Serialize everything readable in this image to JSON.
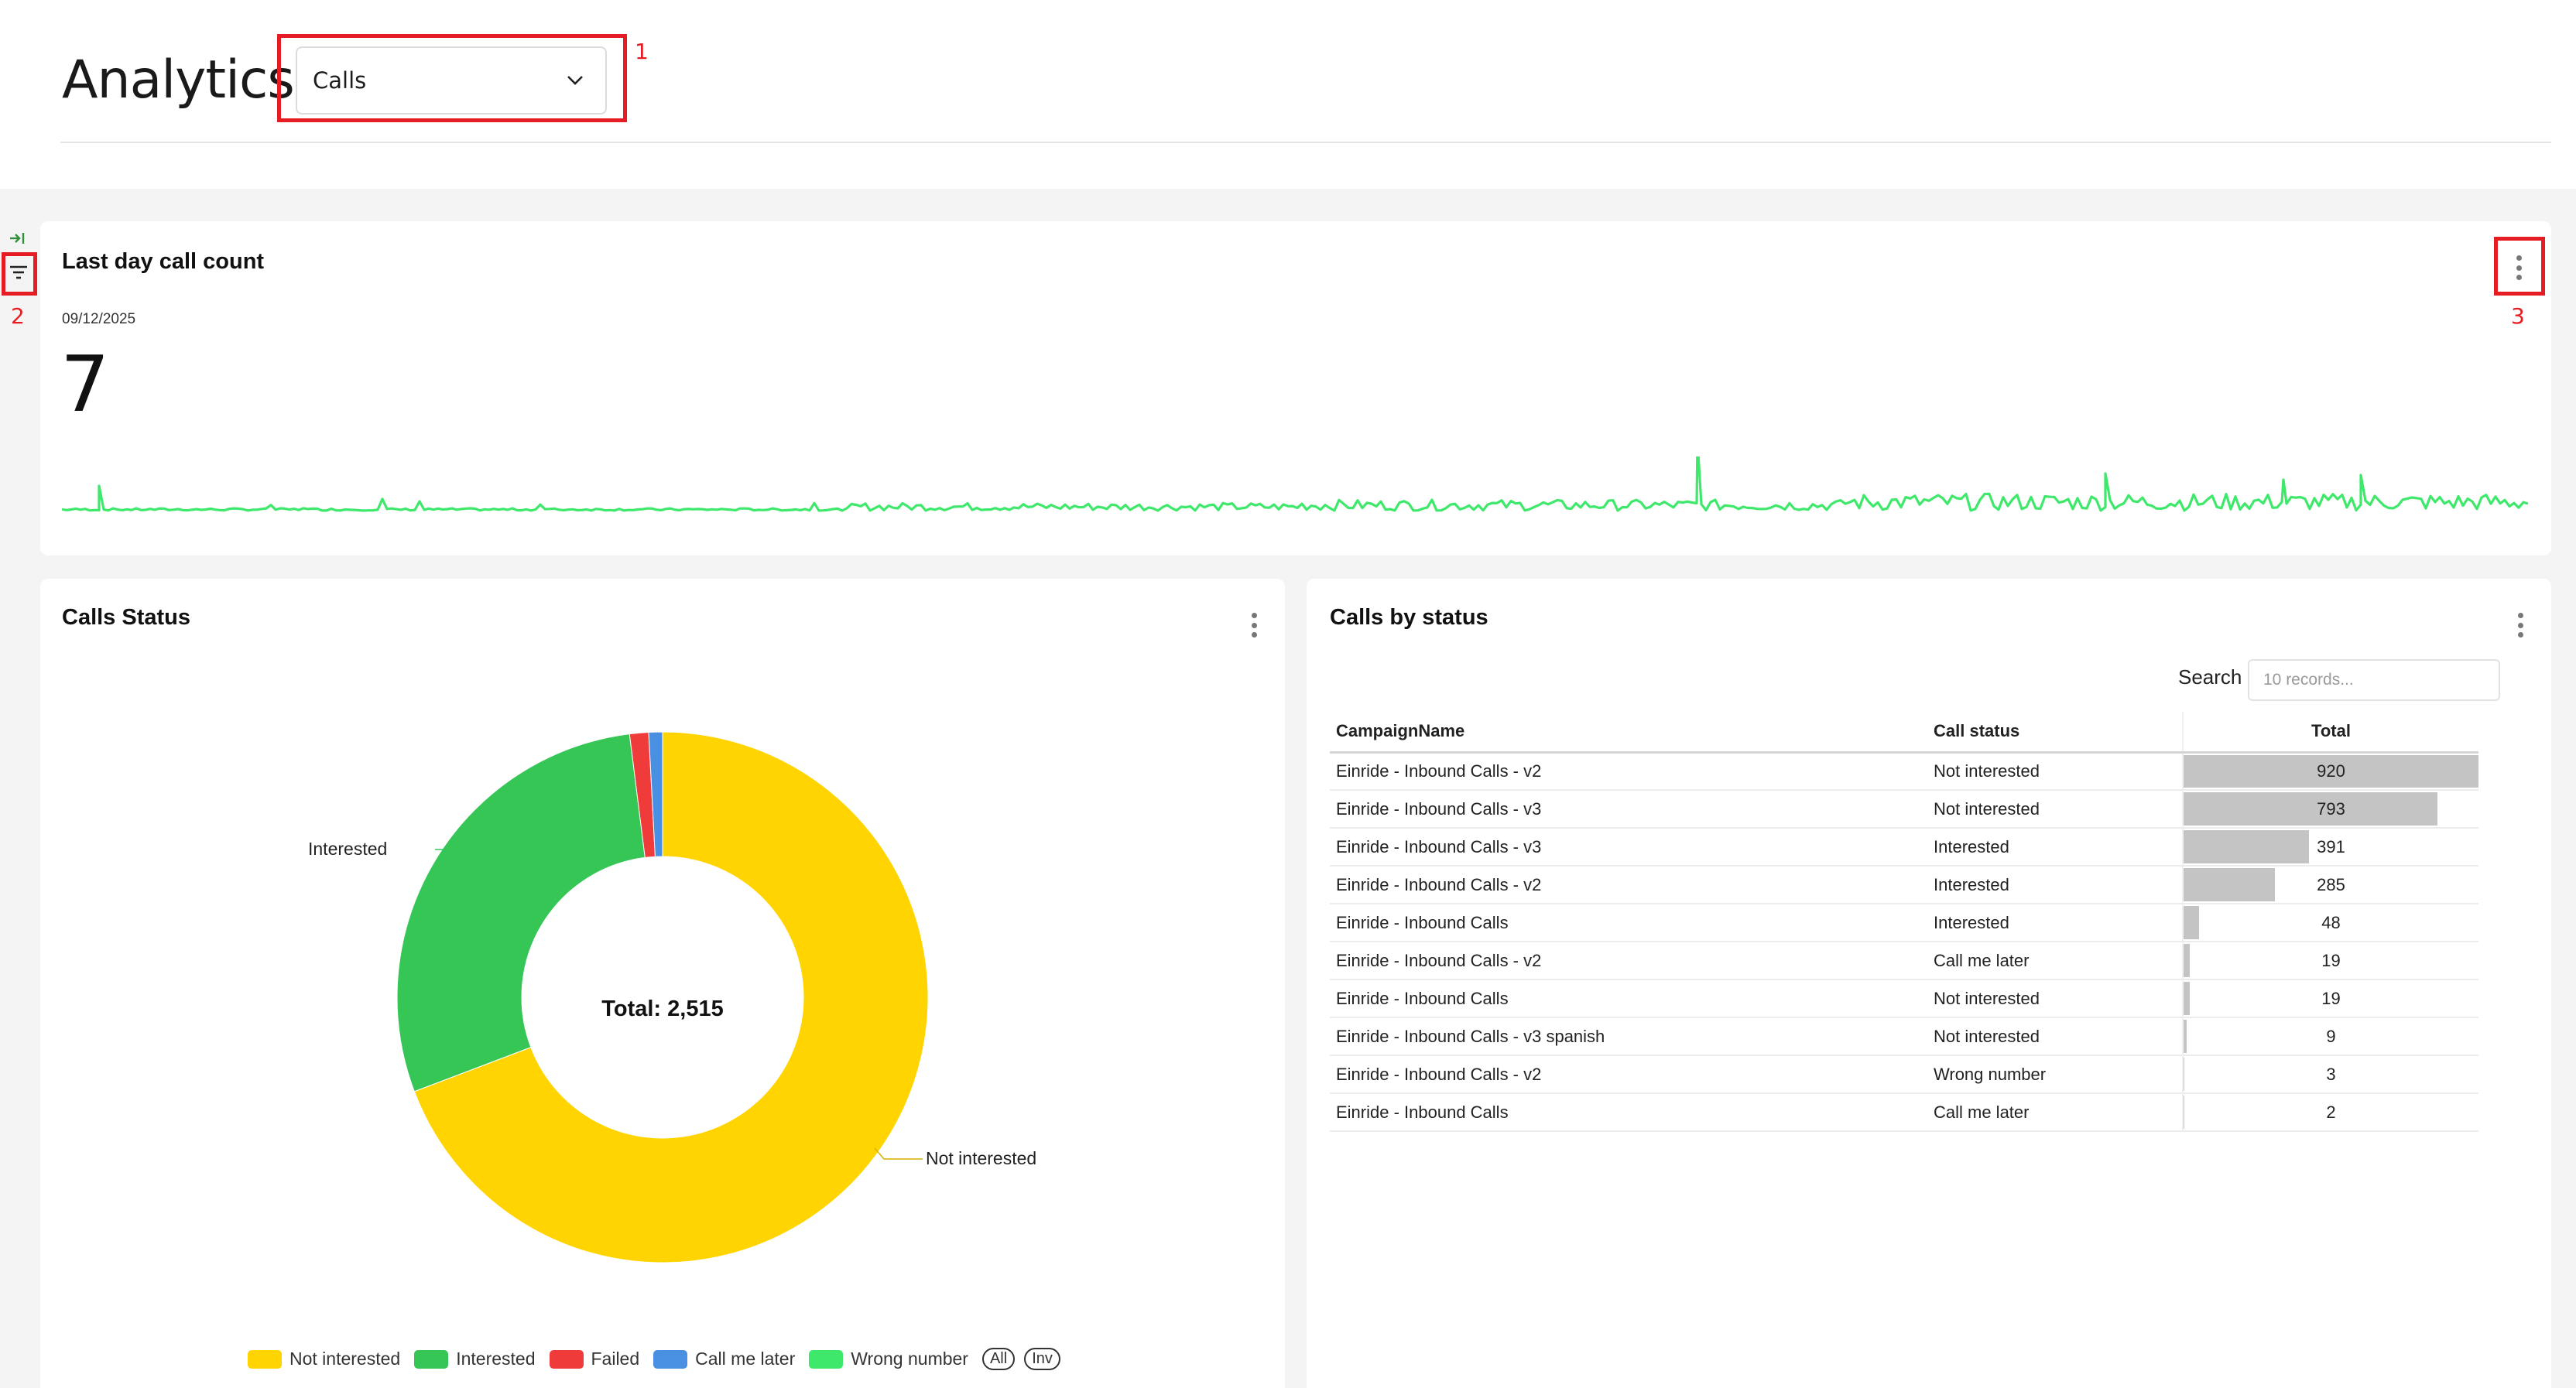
{
  "header": {
    "title": "Analytics",
    "dashboard_select": {
      "value": "Calls"
    }
  },
  "annotations": [
    "1",
    "2",
    "3"
  ],
  "last_day_card": {
    "title": "Last day call count",
    "date": "09/12/2025",
    "value": "7",
    "sparkline_color": "#3ee86a"
  },
  "calls_status_card": {
    "title": "Calls Status",
    "center_label": "Total: 2,515",
    "slice_labels": {
      "interested": "Interested",
      "not_interested": "Not interested"
    },
    "legend": [
      {
        "label": "Not interested",
        "color": "#ffd400"
      },
      {
        "label": "Interested",
        "color": "#35c656"
      },
      {
        "label": "Failed",
        "color": "#f03b3b"
      },
      {
        "label": "Call me later",
        "color": "#4a90e2"
      },
      {
        "label": "Wrong number",
        "color": "#3ee86a"
      }
    ],
    "legend_buttons": {
      "all": "All",
      "inv": "Inv"
    }
  },
  "calls_by_status_card": {
    "title": "Calls by status",
    "search_label": "Search",
    "search_placeholder": "10 records...",
    "columns": {
      "campaign": "CampaignName",
      "status": "Call status",
      "total": "Total"
    },
    "rows": [
      {
        "campaign": "Einride - Inbound Calls - v2",
        "status": "Not interested",
        "total": "920"
      },
      {
        "campaign": "Einride - Inbound Calls - v3",
        "status": "Not interested",
        "total": "793"
      },
      {
        "campaign": "Einride - Inbound Calls - v3",
        "status": "Interested",
        "total": "391"
      },
      {
        "campaign": "Einride - Inbound Calls - v2",
        "status": "Interested",
        "total": "285"
      },
      {
        "campaign": "Einride - Inbound Calls",
        "status": "Interested",
        "total": "48"
      },
      {
        "campaign": "Einride - Inbound Calls - v2",
        "status": "Call me later",
        "total": "19"
      },
      {
        "campaign": "Einride - Inbound Calls",
        "status": "Not interested",
        "total": "19"
      },
      {
        "campaign": "Einride - Inbound Calls - v3 spanish",
        "status": "Not interested",
        "total": "9"
      },
      {
        "campaign": "Einride - Inbound Calls - v2",
        "status": "Wrong number",
        "total": "3"
      },
      {
        "campaign": "Einride - Inbound Calls",
        "status": "Call me later",
        "total": "2"
      }
    ]
  },
  "chart_data": [
    {
      "type": "pie",
      "title": "Calls Status",
      "categories": [
        "Not interested",
        "Interested",
        "Failed",
        "Call me later",
        "Wrong number"
      ],
      "values": [
        1741,
        724,
        29,
        21,
        0
      ],
      "colors": [
        "#ffd400",
        "#35c656",
        "#f03b3b",
        "#4a90e2",
        "#3ee86a"
      ],
      "donut": true,
      "legend_position": "bottom"
    }
  ]
}
